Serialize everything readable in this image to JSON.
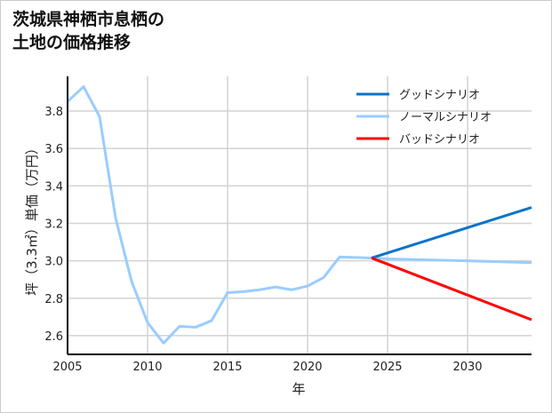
{
  "chart_data": {
    "type": "line",
    "title_lines": [
      "茨城県神栖市息栖の",
      "土地の価格推移"
    ],
    "xlabel": "年",
    "ylabel": "坪（3.3㎡）単価（万円）",
    "xlim": [
      2005,
      2034
    ],
    "ylim": [
      2.5,
      3.985
    ],
    "xticks": [
      2005,
      2010,
      2015,
      2020,
      2025,
      2030
    ],
    "yticks": [
      2.6,
      2.8,
      3.0,
      3.2,
      3.4,
      3.6,
      3.8
    ],
    "grid": true,
    "legend_position": "top-right",
    "series": [
      {
        "name": "グッドシナリオ",
        "color": "#0a74c9",
        "x": [
          2024,
          2034
        ],
        "y": [
          3.015,
          3.285
        ]
      },
      {
        "name": "ノーマルシナリオ",
        "color": "#99cdff",
        "x": [
          2005,
          2006,
          2007,
          2008,
          2009,
          2010,
          2011,
          2012,
          2013,
          2014,
          2015,
          2016,
          2017,
          2018,
          2019,
          2020,
          2021,
          2022,
          2023,
          2024,
          2025,
          2030,
          2034
        ],
        "y": [
          3.85,
          3.93,
          3.77,
          3.23,
          2.89,
          2.67,
          2.56,
          2.65,
          2.645,
          2.68,
          2.83,
          2.835,
          2.845,
          2.86,
          2.845,
          2.865,
          2.91,
          3.02,
          3.018,
          3.015,
          3.01,
          3.0,
          2.99
        ]
      },
      {
        "name": "バッドシナリオ",
        "color": "#ff0000",
        "x": [
          2024,
          2034
        ],
        "y": [
          3.015,
          2.685
        ]
      }
    ]
  }
}
